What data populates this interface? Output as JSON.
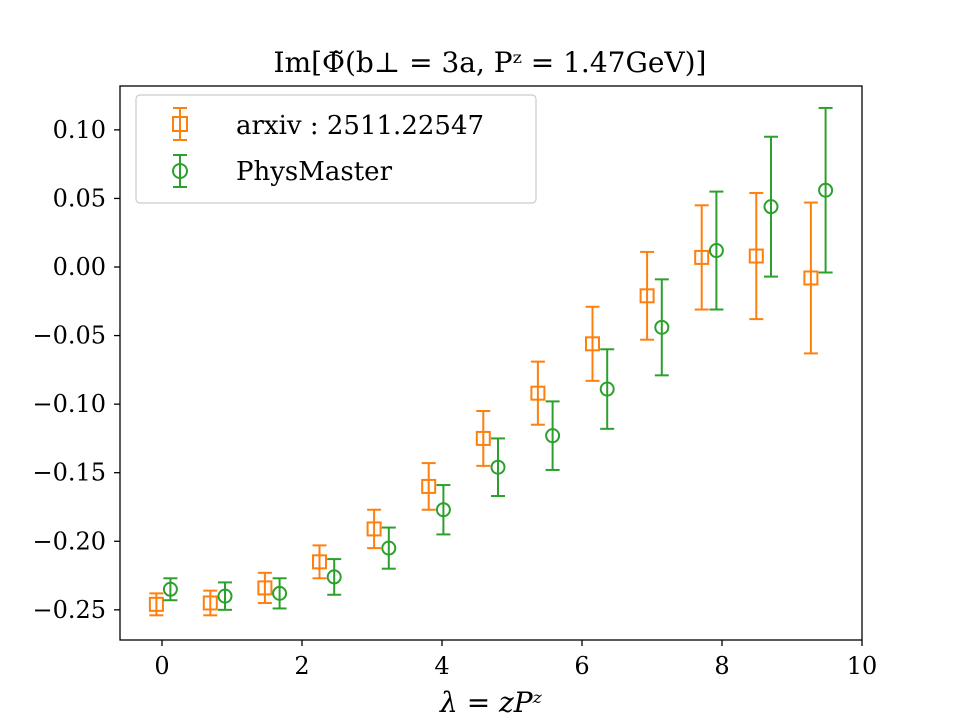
{
  "chart_data": {
    "type": "scatter",
    "title": "Im[Φ̃(b⊥ = 3a, Pᶻ = 1.47GeV)]",
    "xlabel": "λ = zPᶻ",
    "ylabel": "",
    "xlim": [
      -0.6,
      10.0
    ],
    "ylim": [
      -0.272,
      0.132
    ],
    "xticks": [
      0,
      2,
      4,
      6,
      8,
      10
    ],
    "xtick_labels": [
      "0",
      "2",
      "4",
      "6",
      "8",
      "10"
    ],
    "yticks": [
      0.1,
      0.05,
      0.0,
      -0.05,
      -0.1,
      -0.15,
      -0.2,
      -0.25
    ],
    "ytick_labels": [
      "0.10",
      "0.05",
      "0.00",
      "−0.05",
      "−0.10",
      "−0.15",
      "−0.20",
      "−0.25"
    ],
    "legend_position": "top-left",
    "series": [
      {
        "name": "arxiv : 2511.22547",
        "marker": "square",
        "color": "#ff7f0e",
        "x": [
          -0.08,
          0.69,
          1.47,
          2.25,
          3.03,
          3.81,
          4.59,
          5.37,
          6.15,
          6.93,
          7.71,
          8.49,
          9.27
        ],
        "y": [
          -0.246,
          -0.245,
          -0.234,
          -0.215,
          -0.191,
          -0.16,
          -0.125,
          -0.092,
          -0.056,
          -0.021,
          0.007,
          0.008,
          -0.008
        ],
        "err": [
          0.008,
          0.009,
          0.011,
          0.012,
          0.014,
          0.017,
          0.02,
          0.023,
          0.027,
          0.032,
          0.038,
          0.046,
          0.055
        ]
      },
      {
        "name": "PhysMaster",
        "marker": "circle",
        "color": "#2ca02c",
        "x": [
          0.12,
          0.9,
          1.68,
          2.46,
          3.24,
          4.02,
          4.8,
          5.58,
          6.36,
          7.14,
          7.92,
          8.7,
          9.48
        ],
        "y": [
          -0.235,
          -0.24,
          -0.238,
          -0.226,
          -0.205,
          -0.177,
          -0.146,
          -0.123,
          -0.089,
          -0.044,
          0.012,
          0.044,
          0.056
        ],
        "err": [
          0.008,
          0.01,
          0.011,
          0.013,
          0.015,
          0.018,
          0.021,
          0.025,
          0.029,
          0.035,
          0.043,
          0.051,
          0.06
        ]
      }
    ]
  }
}
